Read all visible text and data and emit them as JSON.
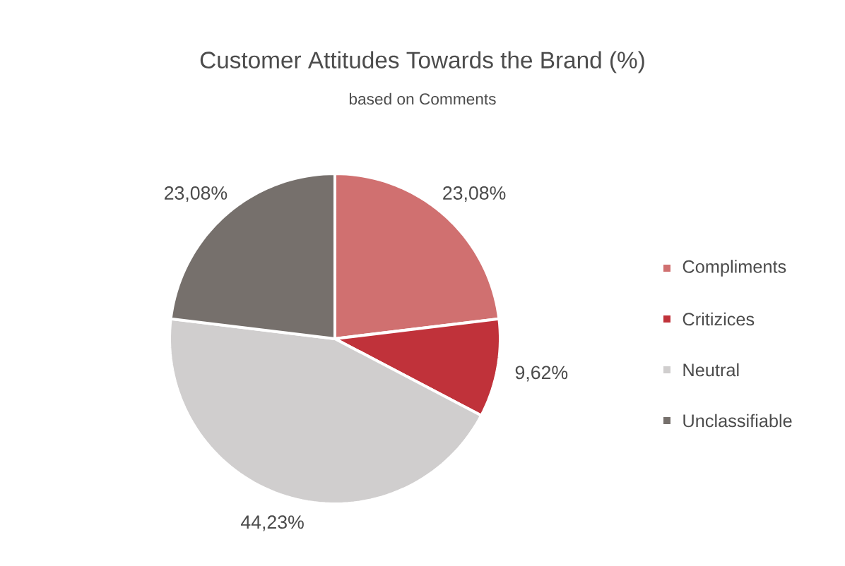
{
  "chart_data": {
    "type": "pie",
    "title": "Customer Attitudes Towards the Brand (%)",
    "subtitle": "based on Comments",
    "categories": [
      "Compliments",
      "Critizices",
      "Neutral",
      "Unclassifiable"
    ],
    "values": [
      23.08,
      9.62,
      44.23,
      23.08
    ],
    "value_labels": [
      "23,08%",
      "9,62%",
      "44,23%",
      "23,08%"
    ],
    "colors": [
      "#d07070",
      "#c0323a",
      "#d0cece",
      "#76706c"
    ],
    "legend": "right"
  }
}
